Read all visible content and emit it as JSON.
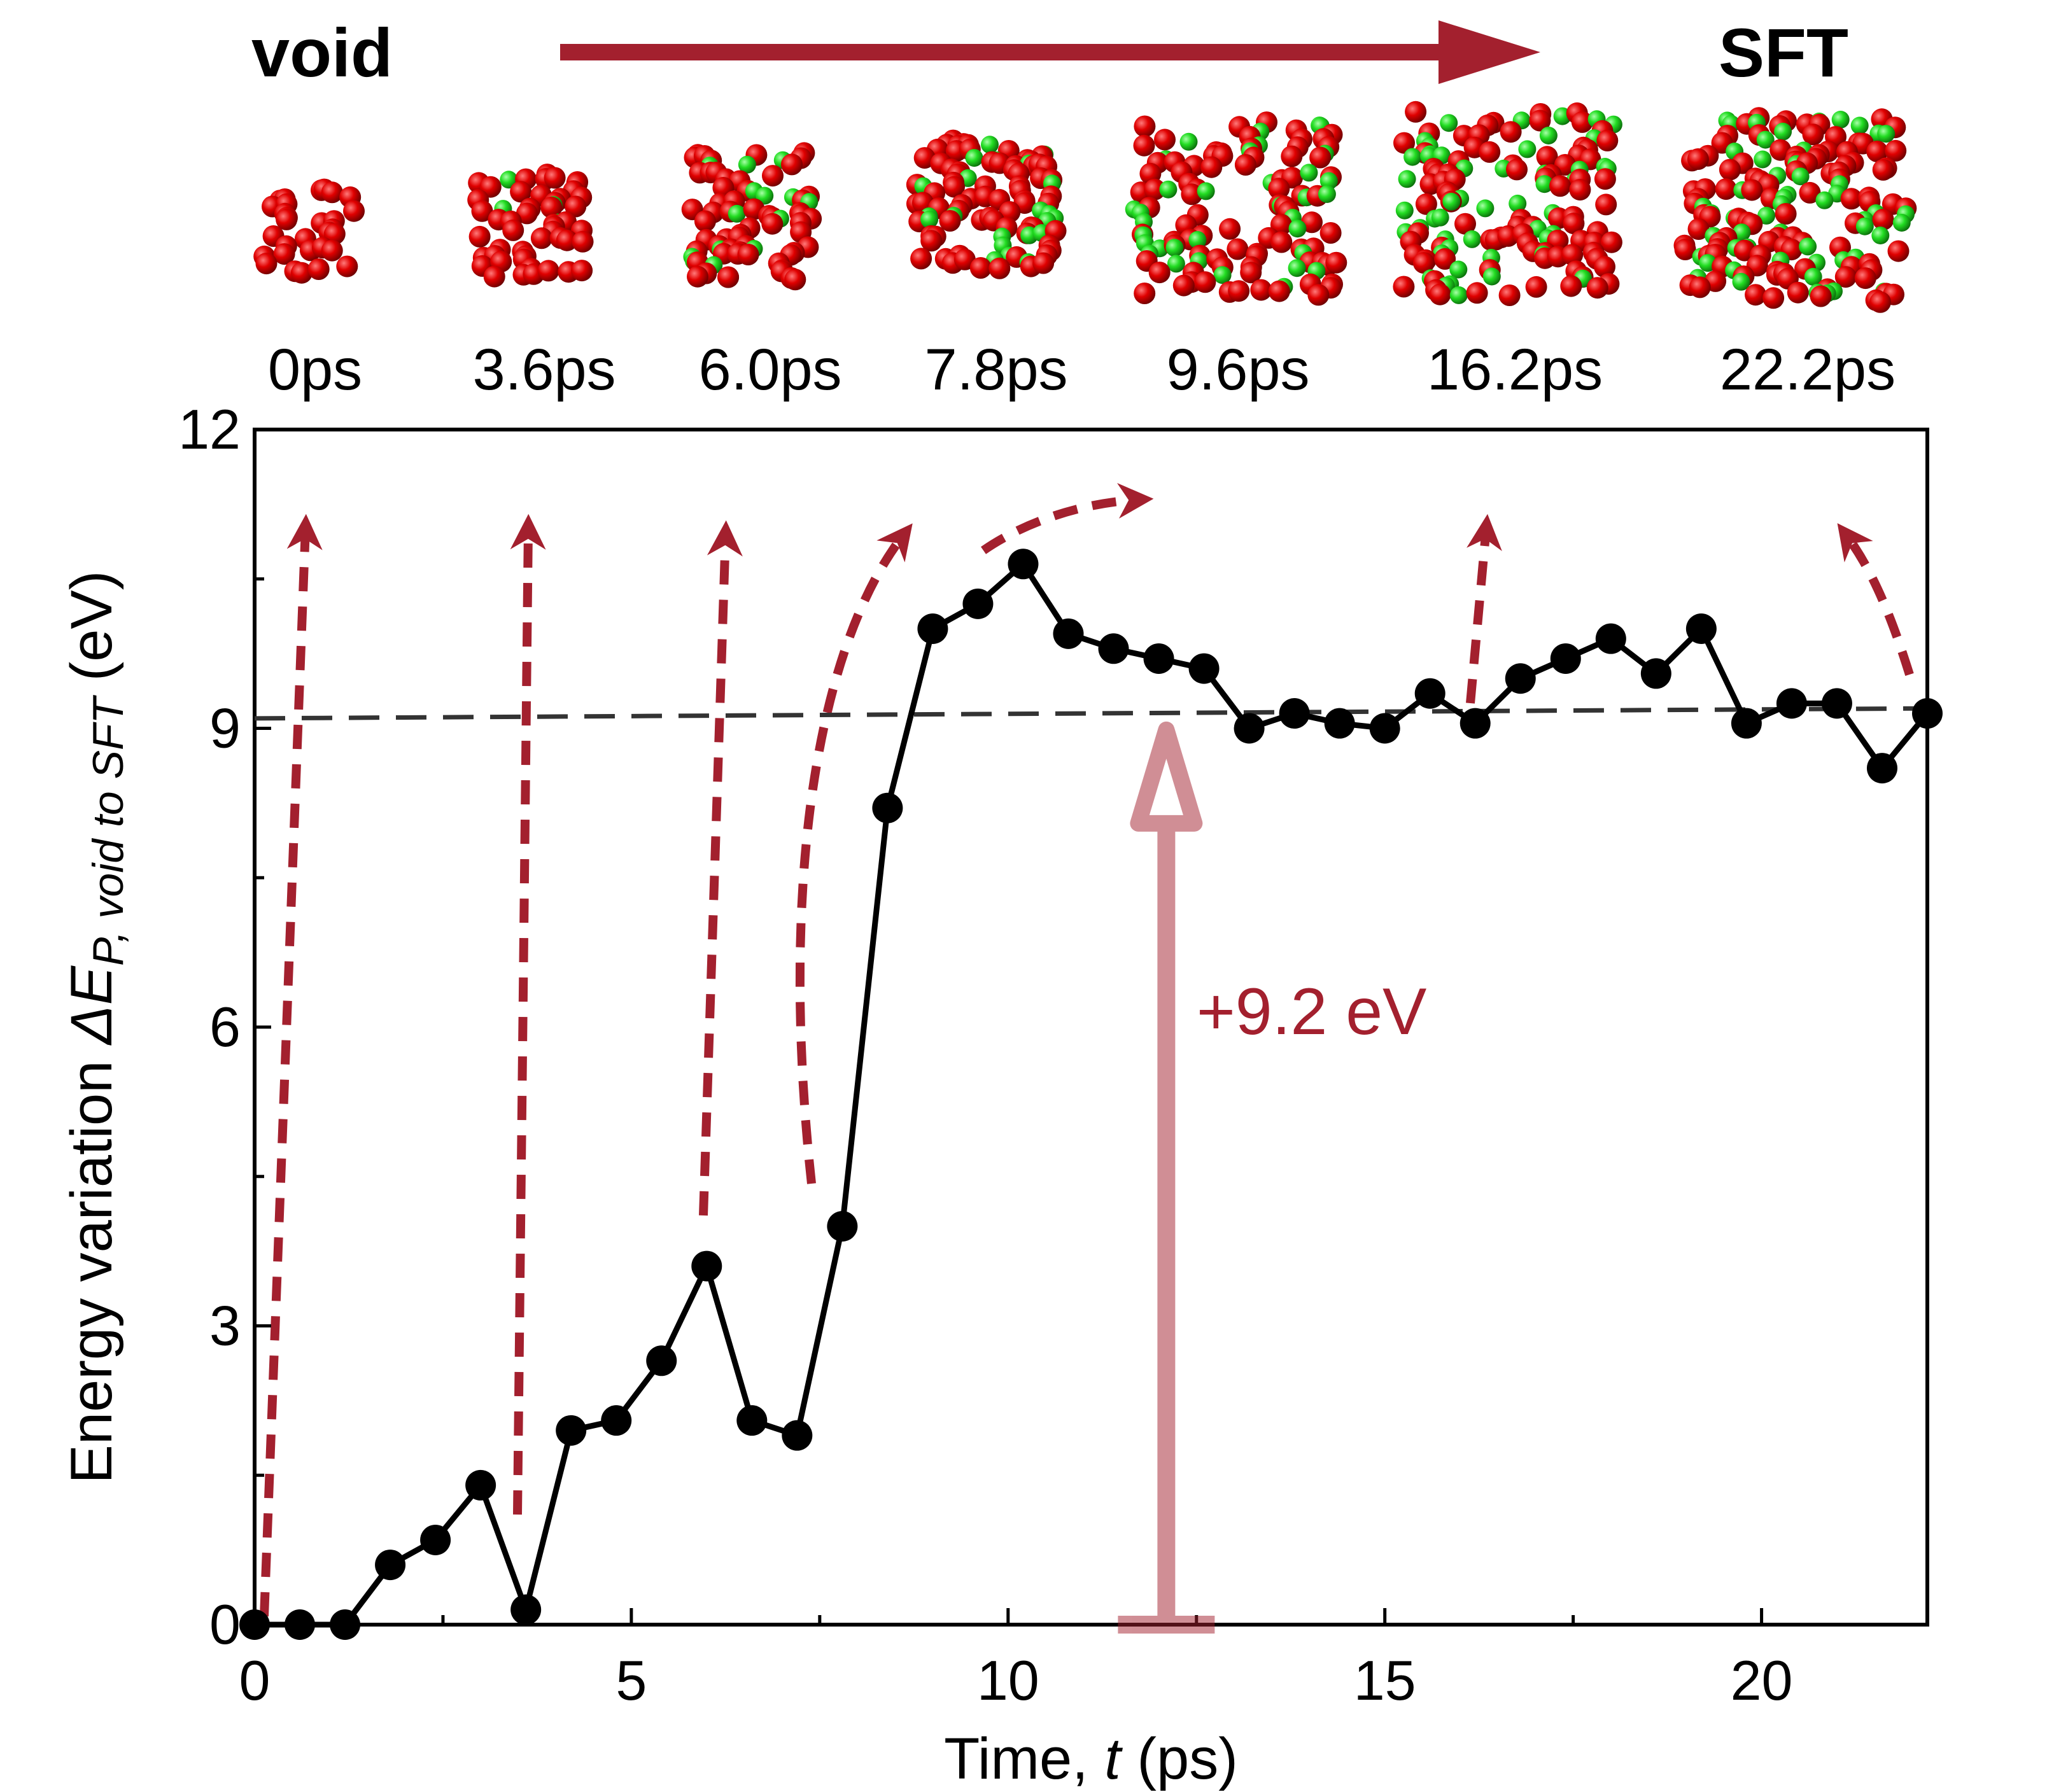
{
  "header": {
    "start_label": "void",
    "end_label": "SFT",
    "arrow_color": "#a3202e"
  },
  "snapshots": [
    {
      "time_label": "0ps",
      "t": 0.0,
      "stage": 0
    },
    {
      "time_label": "3.6ps",
      "t": 3.6,
      "stage": 1
    },
    {
      "time_label": "6.0ps",
      "t": 6.0,
      "stage": 2
    },
    {
      "time_label": "7.8ps",
      "t": 7.8,
      "stage": 3
    },
    {
      "time_label": "9.6ps",
      "t": 9.6,
      "stage": 4
    },
    {
      "time_label": "16.2ps",
      "t": 16.2,
      "stage": 5
    },
    {
      "time_label": "22.2ps",
      "t": 22.2,
      "stage": 6
    }
  ],
  "atom_colors": {
    "red": "#d00000",
    "green": "#22cc22"
  },
  "chart_data": {
    "type": "line",
    "title": "",
    "xlabel_prefix": "Time, ",
    "xlabel_var": "t",
    "xlabel_suffix": " (ps)",
    "ylabel_prefix": "Energy variation ",
    "ylabel_var": "ΔE",
    "ylabel_sub": "P, void to SFT",
    "ylabel_suffix": " (eV)",
    "xlim": [
      0,
      22.2
    ],
    "ylim": [
      0,
      12
    ],
    "xticks": [
      0,
      5,
      10,
      15,
      20
    ],
    "xtick_labels": [
      "0",
      "5",
      "10",
      "15",
      "20"
    ],
    "xminor": [
      2.5,
      7.5,
      12.5,
      17.5
    ],
    "yticks": [
      0,
      3,
      6,
      9,
      12
    ],
    "ytick_labels": [
      "0",
      "3",
      "6",
      "9",
      "12"
    ],
    "yminor": [
      1.5,
      4.5,
      7.5,
      10.5
    ],
    "series": [
      {
        "name": "ΔE_P",
        "color": "#000000",
        "x": [
          0.0,
          0.6,
          1.2,
          1.8,
          2.4,
          3.0,
          3.6,
          4.2,
          4.8,
          5.4,
          6.0,
          6.6,
          7.2,
          7.8,
          8.4,
          9.0,
          9.6,
          10.2,
          10.8,
          11.4,
          12.0,
          12.6,
          13.2,
          13.8,
          14.4,
          15.0,
          15.6,
          16.2,
          16.8,
          17.4,
          18.0,
          18.6,
          19.2,
          19.8,
          20.4,
          21.0,
          21.6,
          22.2
        ],
        "y": [
          0.0,
          0.0,
          0.0,
          0.6,
          0.85,
          1.4,
          0.15,
          1.95,
          2.05,
          2.65,
          3.6,
          2.05,
          1.9,
          4.0,
          8.2,
          10.0,
          10.25,
          10.65,
          9.95,
          9.8,
          9.7,
          9.6,
          9.0,
          9.15,
          9.05,
          9.0,
          9.35,
          9.05,
          9.5,
          9.7,
          9.9,
          9.55,
          10.0,
          9.05,
          9.25,
          9.25,
          8.6,
          9.15
        ]
      }
    ],
    "reference_line": {
      "y_start": 9.1,
      "y_end": 9.2,
      "style": "dashed",
      "color": "#333333"
    },
    "annotation": {
      "text": "+9.2 eV",
      "x": 12.1,
      "y_from": 0,
      "y_to": 9.1,
      "color": "#a3202e"
    }
  }
}
